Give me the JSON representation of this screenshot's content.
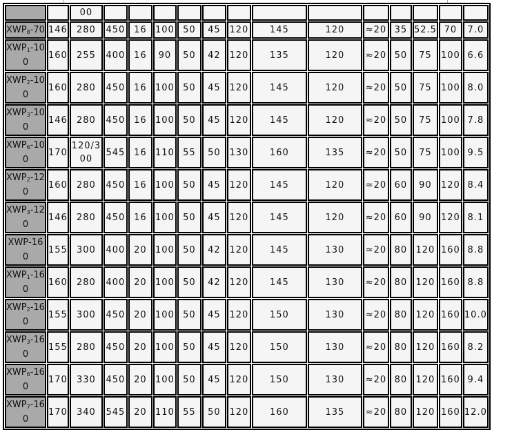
{
  "table": {
    "partial_row": [
      "",
      "",
      "00",
      "",
      "",
      "",
      "",
      "",
      "",
      "",
      "",
      "",
      "",
      "",
      "",
      ""
    ],
    "rows": [
      {
        "model": "XWP",
        "sub": "8",
        "suffix": "-70",
        "cells": [
          "146",
          "280",
          "450",
          "16",
          "100",
          "50",
          "45",
          "120",
          "145",
          "120",
          "≈20",
          "35",
          "52.5",
          "70",
          "7.0"
        ]
      },
      {
        "model": "XWP",
        "sub": "1",
        "suffix": "-100",
        "cells": [
          "160",
          "255",
          "400",
          "16",
          "90",
          "50",
          "42",
          "120",
          "135",
          "120",
          "≈20",
          "50",
          "75",
          "100",
          "6.6"
        ]
      },
      {
        "model": "XWP",
        "sub": "2",
        "suffix": "-100",
        "cells": [
          "160",
          "280",
          "450",
          "16",
          "100",
          "50",
          "45",
          "120",
          "145",
          "120",
          "≈20",
          "50",
          "75",
          "100",
          "8.0"
        ]
      },
      {
        "model": "XWP",
        "sub": "3",
        "suffix": "-100",
        "cells": [
          "146",
          "280",
          "450",
          "16",
          "100",
          "50",
          "45",
          "120",
          "145",
          "120",
          "≈20",
          "50",
          "75",
          "100",
          "7.8"
        ]
      },
      {
        "model": "XWP",
        "sub": "6",
        "suffix": "-100",
        "cells": [
          "170",
          "120/300",
          "545",
          "16",
          "110",
          "55",
          "50",
          "130",
          "160",
          "135",
          "≈20",
          "50",
          "75",
          "100",
          "9.5"
        ]
      },
      {
        "model": "XWP",
        "sub": "2",
        "suffix": "-120",
        "cells": [
          "160",
          "280",
          "450",
          "16",
          "100",
          "50",
          "45",
          "120",
          "145",
          "120",
          "≈20",
          "60",
          "90",
          "120",
          "8.4"
        ]
      },
      {
        "model": "XWP",
        "sub": "3",
        "suffix": "-120",
        "cells": [
          "146",
          "280",
          "450",
          "16",
          "100",
          "50",
          "45",
          "120",
          "145",
          "120",
          "≈20",
          "60",
          "90",
          "120",
          "8.1"
        ]
      },
      {
        "model": "XWP",
        "sub": "",
        "suffix": "-160",
        "cells": [
          "155",
          "300",
          "400",
          "20",
          "100",
          "50",
          "42",
          "120",
          "145",
          "130",
          "≈20",
          "80",
          "120",
          "160",
          "8.8"
        ]
      },
      {
        "model": "XWP",
        "sub": "1",
        "suffix": "-160",
        "cells": [
          "160",
          "280",
          "400",
          "20",
          "100",
          "50",
          "42",
          "120",
          "145",
          "130",
          "≈20",
          "80",
          "120",
          "160",
          "8.8"
        ]
      },
      {
        "model": "XWP",
        "sub": "2",
        "suffix": "-160",
        "cells": [
          "155",
          "300",
          "450",
          "20",
          "100",
          "50",
          "45",
          "120",
          "150",
          "130",
          "≈20",
          "80",
          "120",
          "160",
          "10.0"
        ]
      },
      {
        "model": "XWP",
        "sub": "3",
        "suffix": "-160",
        "cells": [
          "155",
          "280",
          "450",
          "20",
          "100",
          "50",
          "45",
          "120",
          "150",
          "130",
          "≈20",
          "80",
          "120",
          "160",
          "8.2"
        ]
      },
      {
        "model": "XWP",
        "sub": "6",
        "suffix": "-160",
        "cells": [
          "170",
          "330",
          "450",
          "20",
          "100",
          "50",
          "45",
          "120",
          "150",
          "130",
          "≈20",
          "80",
          "120",
          "160",
          "9.4"
        ]
      },
      {
        "model": "XWP",
        "sub": "7",
        "suffix": "-160",
        "cells": [
          "170",
          "340",
          "545",
          "20",
          "110",
          "55",
          "50",
          "120",
          "160",
          "135",
          "≈20",
          "80",
          "120",
          "160",
          "12.0"
        ]
      }
    ]
  },
  "colors": {
    "label_bg": "#a9a9a9",
    "cell_bg": "#f5f5f5",
    "border": "#000000"
  }
}
